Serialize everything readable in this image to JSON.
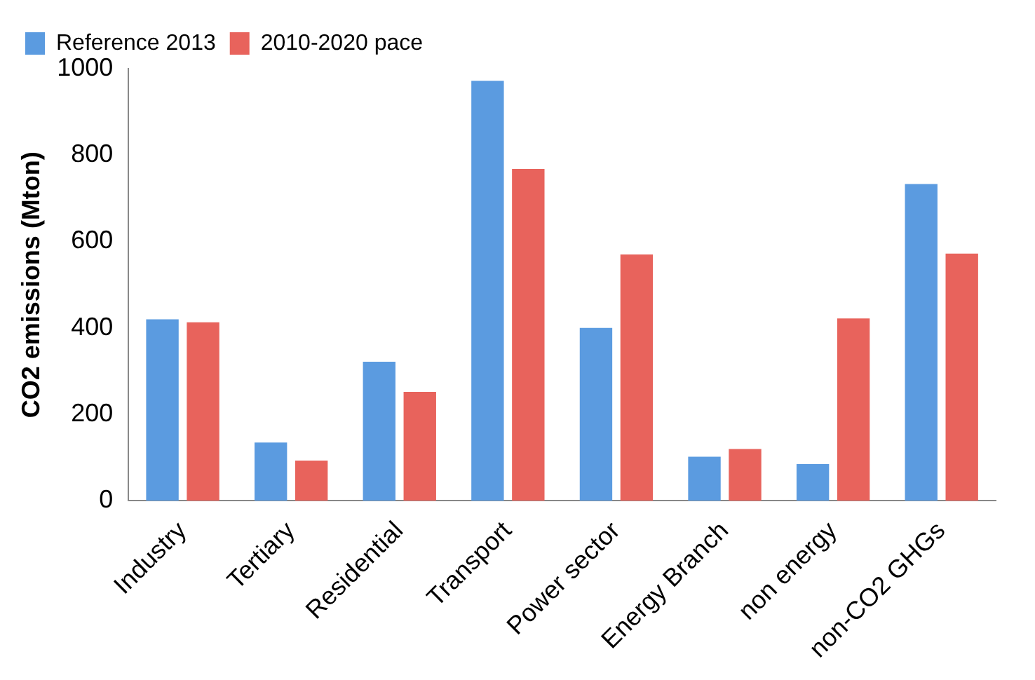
{
  "chart_data": {
    "type": "bar",
    "ylabel": "CO2 emissions (Mton)",
    "categories": [
      "Industry",
      "Tertiary",
      "Residential",
      "Transport",
      "Power sector",
      "Energy Branch",
      "non energy",
      "non-CO2 GHGs"
    ],
    "series": [
      {
        "name": "Reference 2013",
        "color": "#5b9be0",
        "values": [
          420,
          135,
          322,
          972,
          400,
          102,
          85,
          733
        ]
      },
      {
        "name": "2010-2020 pace",
        "color": "#e8635c",
        "values": [
          413,
          93,
          252,
          768,
          570,
          120,
          422,
          572
        ]
      }
    ],
    "ylim": [
      0,
      1000
    ],
    "yticks": [
      0,
      200,
      400,
      600,
      800,
      1000
    ],
    "grid": false,
    "legend": "top left"
  }
}
